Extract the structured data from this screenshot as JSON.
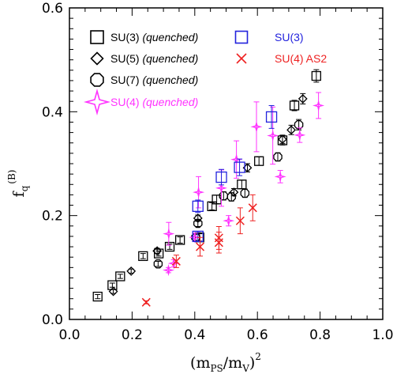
{
  "chart_data": {
    "type": "scatter",
    "title": "",
    "xlabel": {
      "base": "(m",
      "sub1": "PS",
      "mid": "/m",
      "sub2": "V",
      "close": ")",
      "sup": "2"
    },
    "ylabel": {
      "base": "f",
      "sub": "q",
      "sup": "(B)"
    },
    "xlim": [
      0.0,
      1.0
    ],
    "ylim": [
      0.0,
      0.6
    ],
    "xticks": [
      "0.0",
      "0.2",
      "0.4",
      "0.6",
      "0.8",
      "1.0"
    ],
    "yticks": [
      "0.0",
      "0.2",
      "0.4",
      "0.6"
    ],
    "grid": false,
    "legend_placement": "top",
    "legend": [
      {
        "name": "SU(3)",
        "suffix": "(quenched)",
        "marker": "square",
        "color": "#000000"
      },
      {
        "name": "SU(5)",
        "suffix": "(quenched)",
        "marker": "diamond",
        "color": "#000000"
      },
      {
        "name": "SU(7)",
        "suffix": "(quenched)",
        "marker": "octagon",
        "color": "#000000"
      },
      {
        "name": "SU(4)",
        "suffix": "(quenched)",
        "marker": "star",
        "color": "#ff33ff"
      },
      {
        "name": "SU(3)",
        "suffix": "",
        "marker": "square",
        "color": "#2222dd"
      },
      {
        "name": "SU(4) AS2",
        "suffix": "",
        "marker": "cross",
        "color": "#ee2222"
      }
    ],
    "series": [
      {
        "name": "SU(3) (quenched)",
        "marker": "square",
        "color": "#000000",
        "size": 11,
        "points": [
          [
            0.09,
            0.044,
            0.004
          ],
          [
            0.137,
            0.066,
            0.004
          ],
          [
            0.162,
            0.083,
            0.004
          ],
          [
            0.235,
            0.122,
            0.005
          ],
          [
            0.285,
            0.127,
            0.005
          ],
          [
            0.32,
            0.14,
            0.005
          ],
          [
            0.353,
            0.153,
            0.006
          ],
          [
            0.415,
            0.158,
            0.007
          ],
          [
            0.455,
            0.218,
            0.007
          ],
          [
            0.47,
            0.231,
            0.008
          ],
          [
            0.55,
            0.26,
            0.008
          ],
          [
            0.605,
            0.305,
            0.008
          ],
          [
            0.68,
            0.345,
            0.009
          ],
          [
            0.718,
            0.412,
            0.01
          ],
          [
            0.788,
            0.469,
            0.012
          ]
        ]
      },
      {
        "name": "SU(5) (quenched)",
        "marker": "diamond",
        "color": "#000000",
        "size": 10,
        "points": [
          [
            0.14,
            0.054,
            0.004
          ],
          [
            0.197,
            0.093,
            0.004
          ],
          [
            0.28,
            0.132,
            0.005
          ],
          [
            0.41,
            0.195,
            0.006
          ],
          [
            0.525,
            0.245,
            0.007
          ],
          [
            0.568,
            0.292,
            0.008
          ],
          [
            0.68,
            0.347,
            0.008
          ],
          [
            0.708,
            0.365,
            0.009
          ],
          [
            0.745,
            0.425,
            0.01
          ]
        ]
      },
      {
        "name": "SU(7) (quenched)",
        "marker": "octagon",
        "color": "#000000",
        "size": 11,
        "points": [
          [
            0.283,
            0.107,
            0.005
          ],
          [
            0.403,
            0.158,
            0.006
          ],
          [
            0.41,
            0.185,
            0.006
          ],
          [
            0.492,
            0.238,
            0.008
          ],
          [
            0.517,
            0.236,
            0.008
          ],
          [
            0.56,
            0.243,
            0.008
          ],
          [
            0.665,
            0.313,
            0.008
          ],
          [
            0.732,
            0.375,
            0.01
          ]
        ]
      },
      {
        "name": "SU(4) (quenched)",
        "marker": "star",
        "color": "#ff33ff",
        "size": 10,
        "points": [
          [
            0.316,
            0.095,
            0.005
          ],
          [
            0.333,
            0.108,
            0.007
          ],
          [
            0.317,
            0.165,
            0.022
          ],
          [
            0.4,
            0.158,
            0.008
          ],
          [
            0.412,
            0.245,
            0.03
          ],
          [
            0.485,
            0.253,
            0.035
          ],
          [
            0.508,
            0.19,
            0.01
          ],
          [
            0.533,
            0.308,
            0.036
          ],
          [
            0.597,
            0.371,
            0.048
          ],
          [
            0.649,
            0.354,
            0.055
          ],
          [
            0.673,
            0.275,
            0.012
          ],
          [
            0.735,
            0.355,
            0.014
          ],
          [
            0.795,
            0.412,
            0.025
          ]
        ]
      },
      {
        "name": "SU(3)",
        "marker": "square",
        "color": "#2222dd",
        "size": 13,
        "points": [
          [
            0.41,
            0.16,
            0.009
          ],
          [
            0.41,
            0.218,
            0.012
          ],
          [
            0.485,
            0.274,
            0.015
          ],
          [
            0.543,
            0.293,
            0.016
          ],
          [
            0.645,
            0.39,
            0.022
          ]
        ]
      },
      {
        "name": "SU(4) AS2",
        "marker": "cross",
        "color": "#ee2222",
        "size": 10,
        "points": [
          [
            0.245,
            0.033,
            0.003
          ],
          [
            0.341,
            0.112,
            0.012
          ],
          [
            0.417,
            0.14,
            0.018
          ],
          [
            0.477,
            0.157,
            0.022
          ],
          [
            0.477,
            0.148,
            0.02
          ],
          [
            0.545,
            0.19,
            0.025
          ],
          [
            0.585,
            0.215,
            0.025
          ]
        ]
      }
    ]
  }
}
